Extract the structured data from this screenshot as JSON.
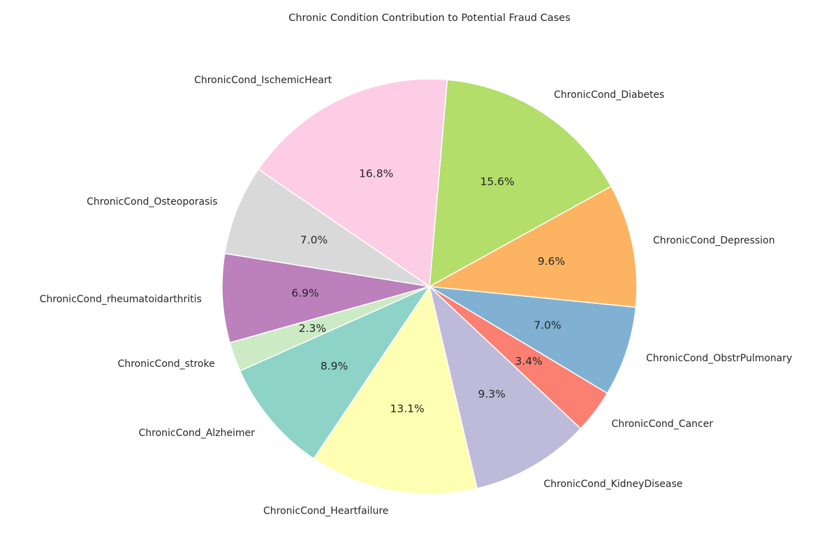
{
  "chart_data": {
    "type": "pie",
    "title": "Chronic Condition Contribution to Potential Fraud Cases",
    "slices": [
      {
        "label": "ChronicCond_Alzheimer",
        "value": 8.9,
        "pct_text": "8.9%",
        "color": "#8dd3c7"
      },
      {
        "label": "ChronicCond_Heartfailure",
        "value": 13.1,
        "pct_text": "13.1%",
        "color": "#ffffb3"
      },
      {
        "label": "ChronicCond_KidneyDisease",
        "value": 9.3,
        "pct_text": "9.3%",
        "color": "#bebada"
      },
      {
        "label": "ChronicCond_Cancer",
        "value": 3.4,
        "pct_text": "3.4%",
        "color": "#fb8072"
      },
      {
        "label": "ChronicCond_ObstrPulmonary",
        "value": 7.0,
        "pct_text": "7.0%",
        "color": "#80b1d3"
      },
      {
        "label": "ChronicCond_Depression",
        "value": 9.6,
        "pct_text": "9.6%",
        "color": "#fdb462"
      },
      {
        "label": "ChronicCond_Diabetes",
        "value": 15.6,
        "pct_text": "15.6%",
        "color": "#b3de69"
      },
      {
        "label": "ChronicCond_IschemicHeart",
        "value": 16.8,
        "pct_text": "16.8%",
        "color": "#fccde5"
      },
      {
        "label": "ChronicCond_Osteoporasis",
        "value": 7.0,
        "pct_text": "7.0%",
        "color": "#d9d9d9"
      },
      {
        "label": "ChronicCond_rheumatoidarthritis",
        "value": 6.9,
        "pct_text": "6.9%",
        "color": "#bc80bd"
      },
      {
        "label": "ChronicCond_stroke",
        "value": 2.3,
        "pct_text": "2.3%",
        "color": "#ccebc5"
      }
    ]
  }
}
